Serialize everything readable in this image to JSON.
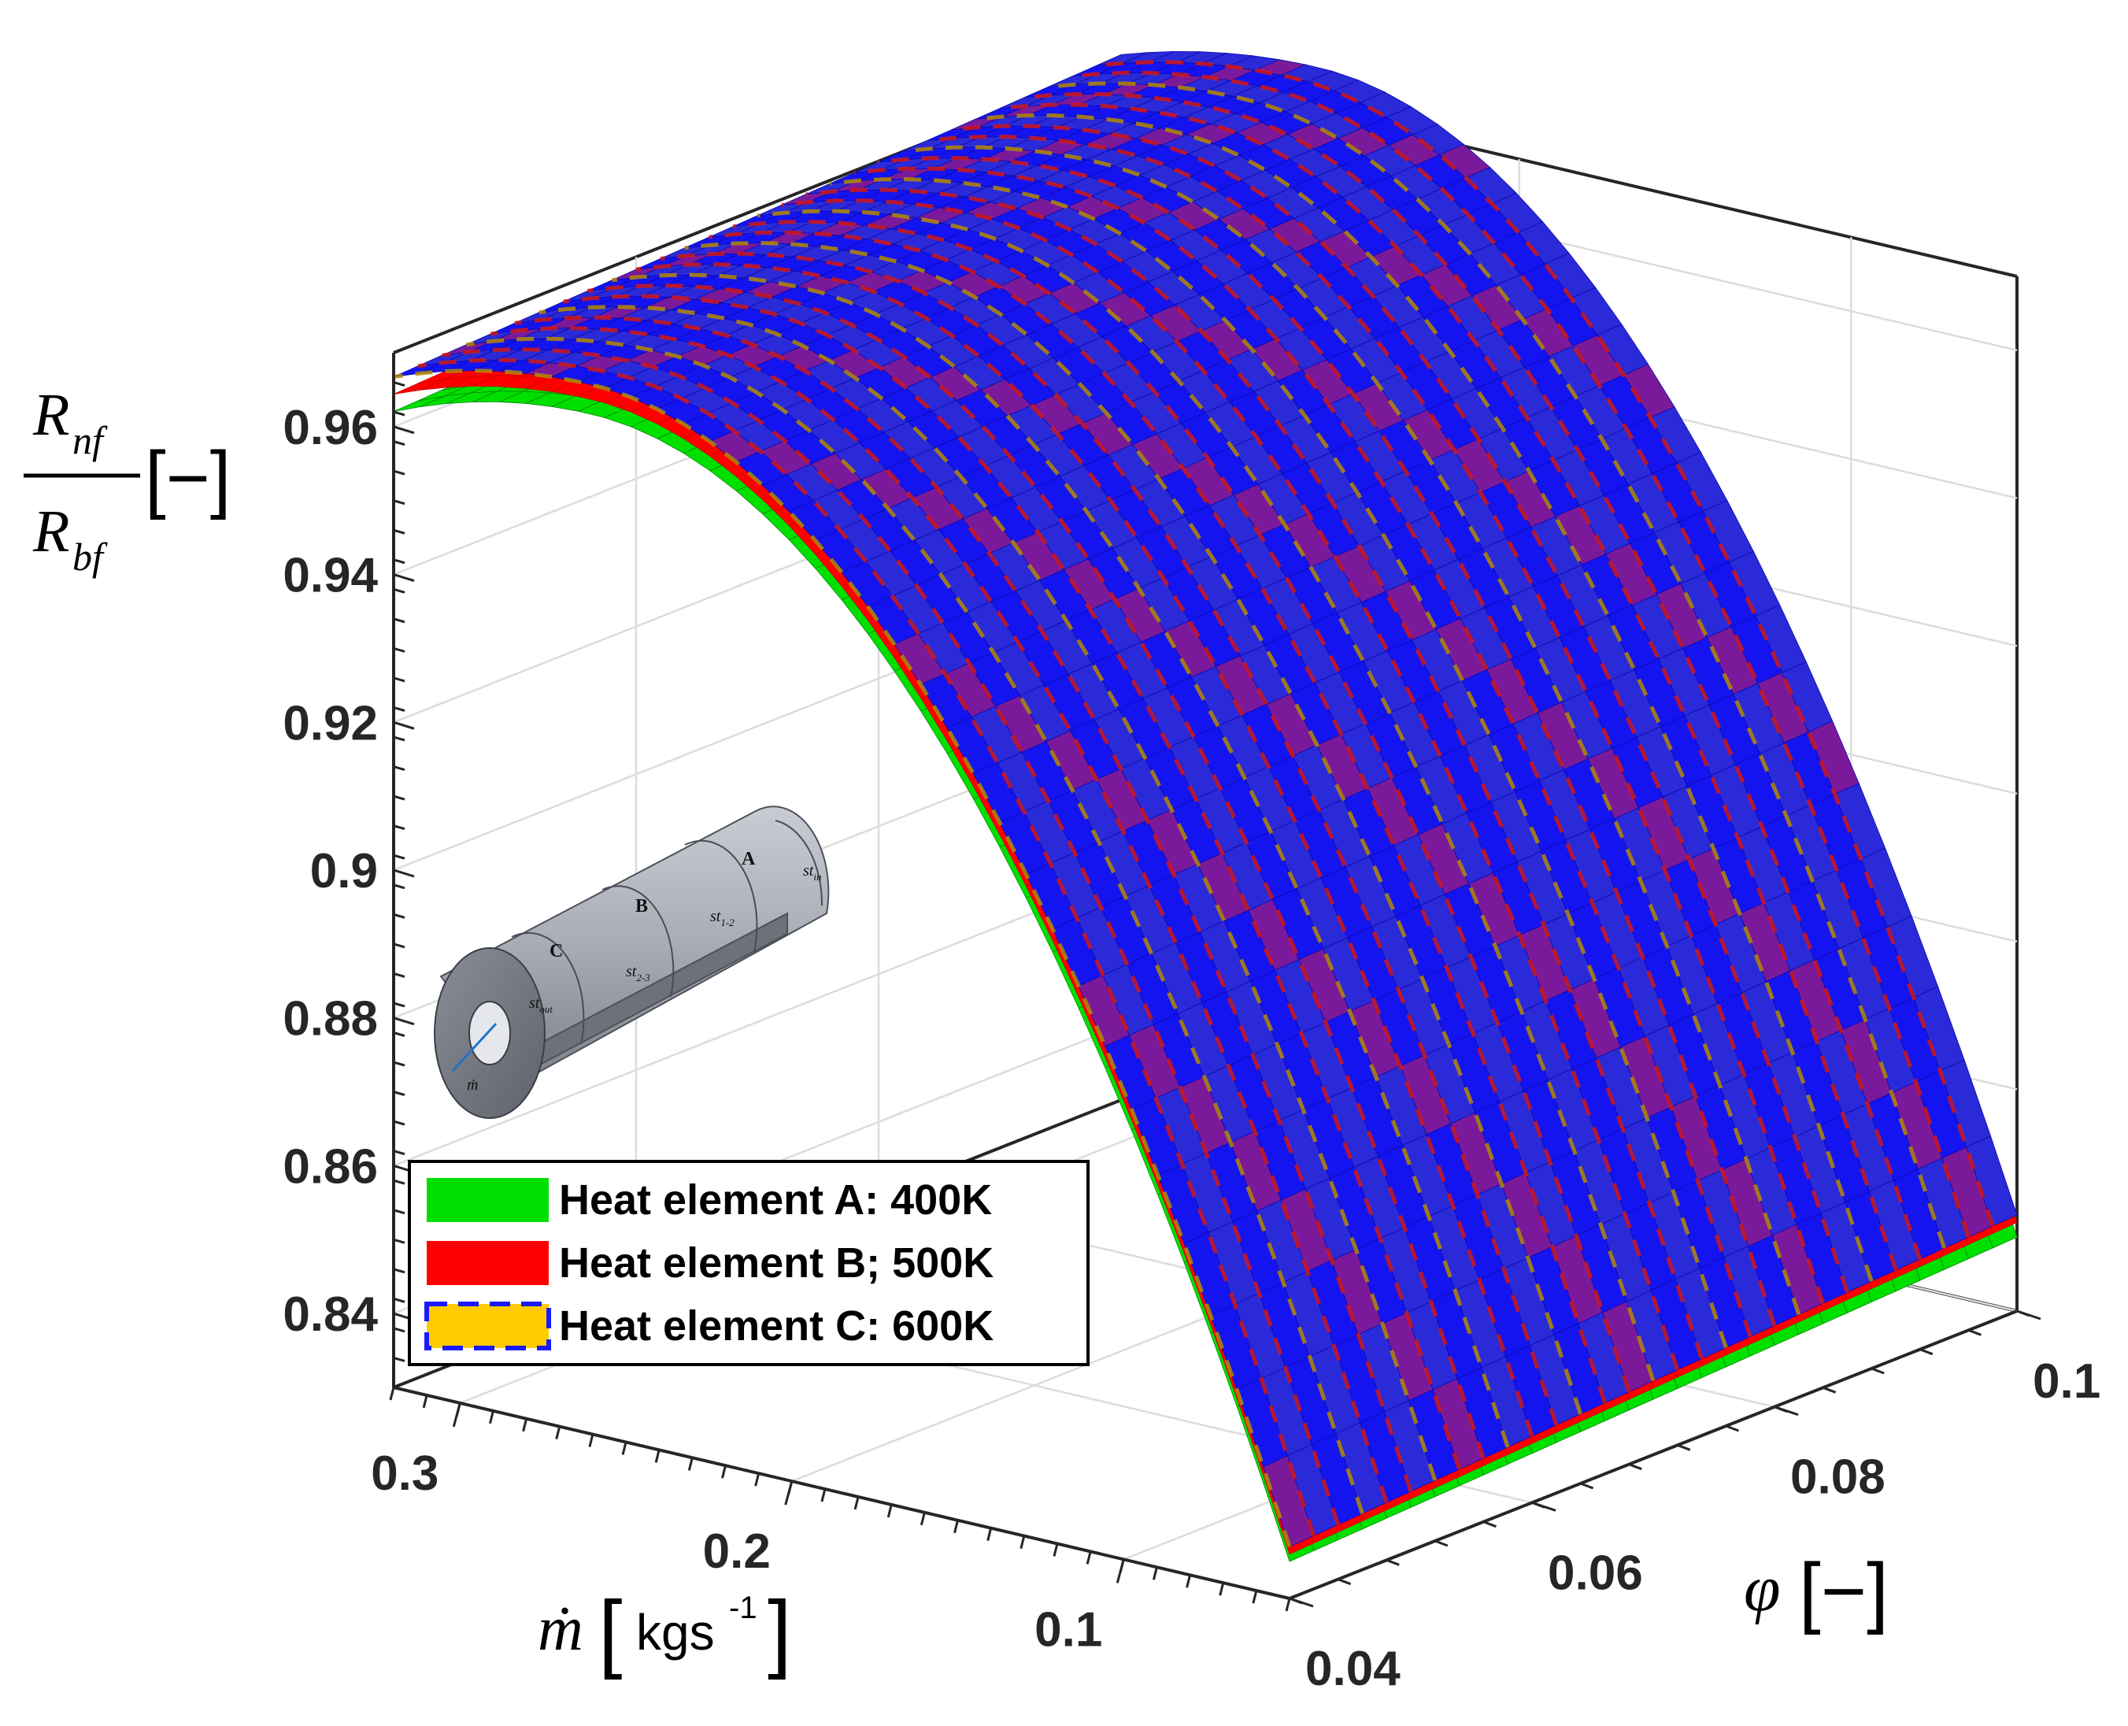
{
  "chart_data": {
    "type": "surface",
    "zlabel": {
      "numerator": "R",
      "numerator_sub": "nf",
      "denominator": "R",
      "denominator_sub": "bf",
      "unit": "[−]"
    },
    "xlabel": {
      "symbol": "ṁ",
      "unit_open": "[",
      "unit": "kgs",
      "unit_sup": "-1",
      "unit_close": "]"
    },
    "ylabel": {
      "symbol": "φ",
      "unit": "[−]"
    },
    "z_ticks": [
      "0.84",
      "0.86",
      "0.88",
      "0.9",
      "0.92",
      "0.94",
      "0.96"
    ],
    "z_tick_values": [
      0.84,
      0.86,
      0.88,
      0.9,
      0.92,
      0.94,
      0.96
    ],
    "x_ticks": [
      "0.1",
      "0.2",
      "0.3"
    ],
    "x_tick_values": [
      0.1,
      0.2,
      0.3
    ],
    "y_ticks": [
      "0.04",
      "0.06",
      "0.08",
      "0.1"
    ],
    "y_tick_values": [
      0.04,
      0.06,
      0.08,
      0.1
    ],
    "xlim": [
      0.05,
      0.32
    ],
    "ylim": [
      0.04,
      0.1
    ],
    "zlim": [
      0.83,
      0.97
    ],
    "grid": true,
    "legend_position": "bottom-left",
    "series": [
      {
        "name": "Heat element A: 400K",
        "color": "#00e000",
        "edge": "#008800",
        "corner_values": {
          "m_high_phi_low": 0.951,
          "m_high_phi_high": 0.957,
          "m_low_phi_low": 0.835,
          "m_low_phi_high": 0.84,
          "peak": 0.968
        }
      },
      {
        "name": "Heat element B; 500K",
        "color": "#ff0000",
        "edge": "#cc0000",
        "corner_values": {
          "m_high_phi_low": 0.954,
          "m_high_phi_high": 0.96,
          "m_low_phi_low": 0.836,
          "m_low_phi_high": 0.842,
          "peak": 0.97
        }
      },
      {
        "name": "Heat element C: 600K",
        "color": "#ffcc00",
        "edge": "#1a1aff",
        "corner_values": {
          "m_high_phi_low": 0.957,
          "m_high_phi_high": 0.963,
          "m_low_phi_low": 0.837,
          "m_low_phi_high": 0.843,
          "peak": 0.972
        }
      }
    ]
  },
  "inset": {
    "label_a": "A",
    "label_b": "B",
    "label_c": "C",
    "st_in": "st",
    "st_in_sub": "in",
    "st_12": "st",
    "st_12_sub": "1-2",
    "st_23": "st",
    "st_23_sub": "2-3",
    "st_out": "st",
    "st_out_sub": "out",
    "mdot": "ṁ"
  }
}
